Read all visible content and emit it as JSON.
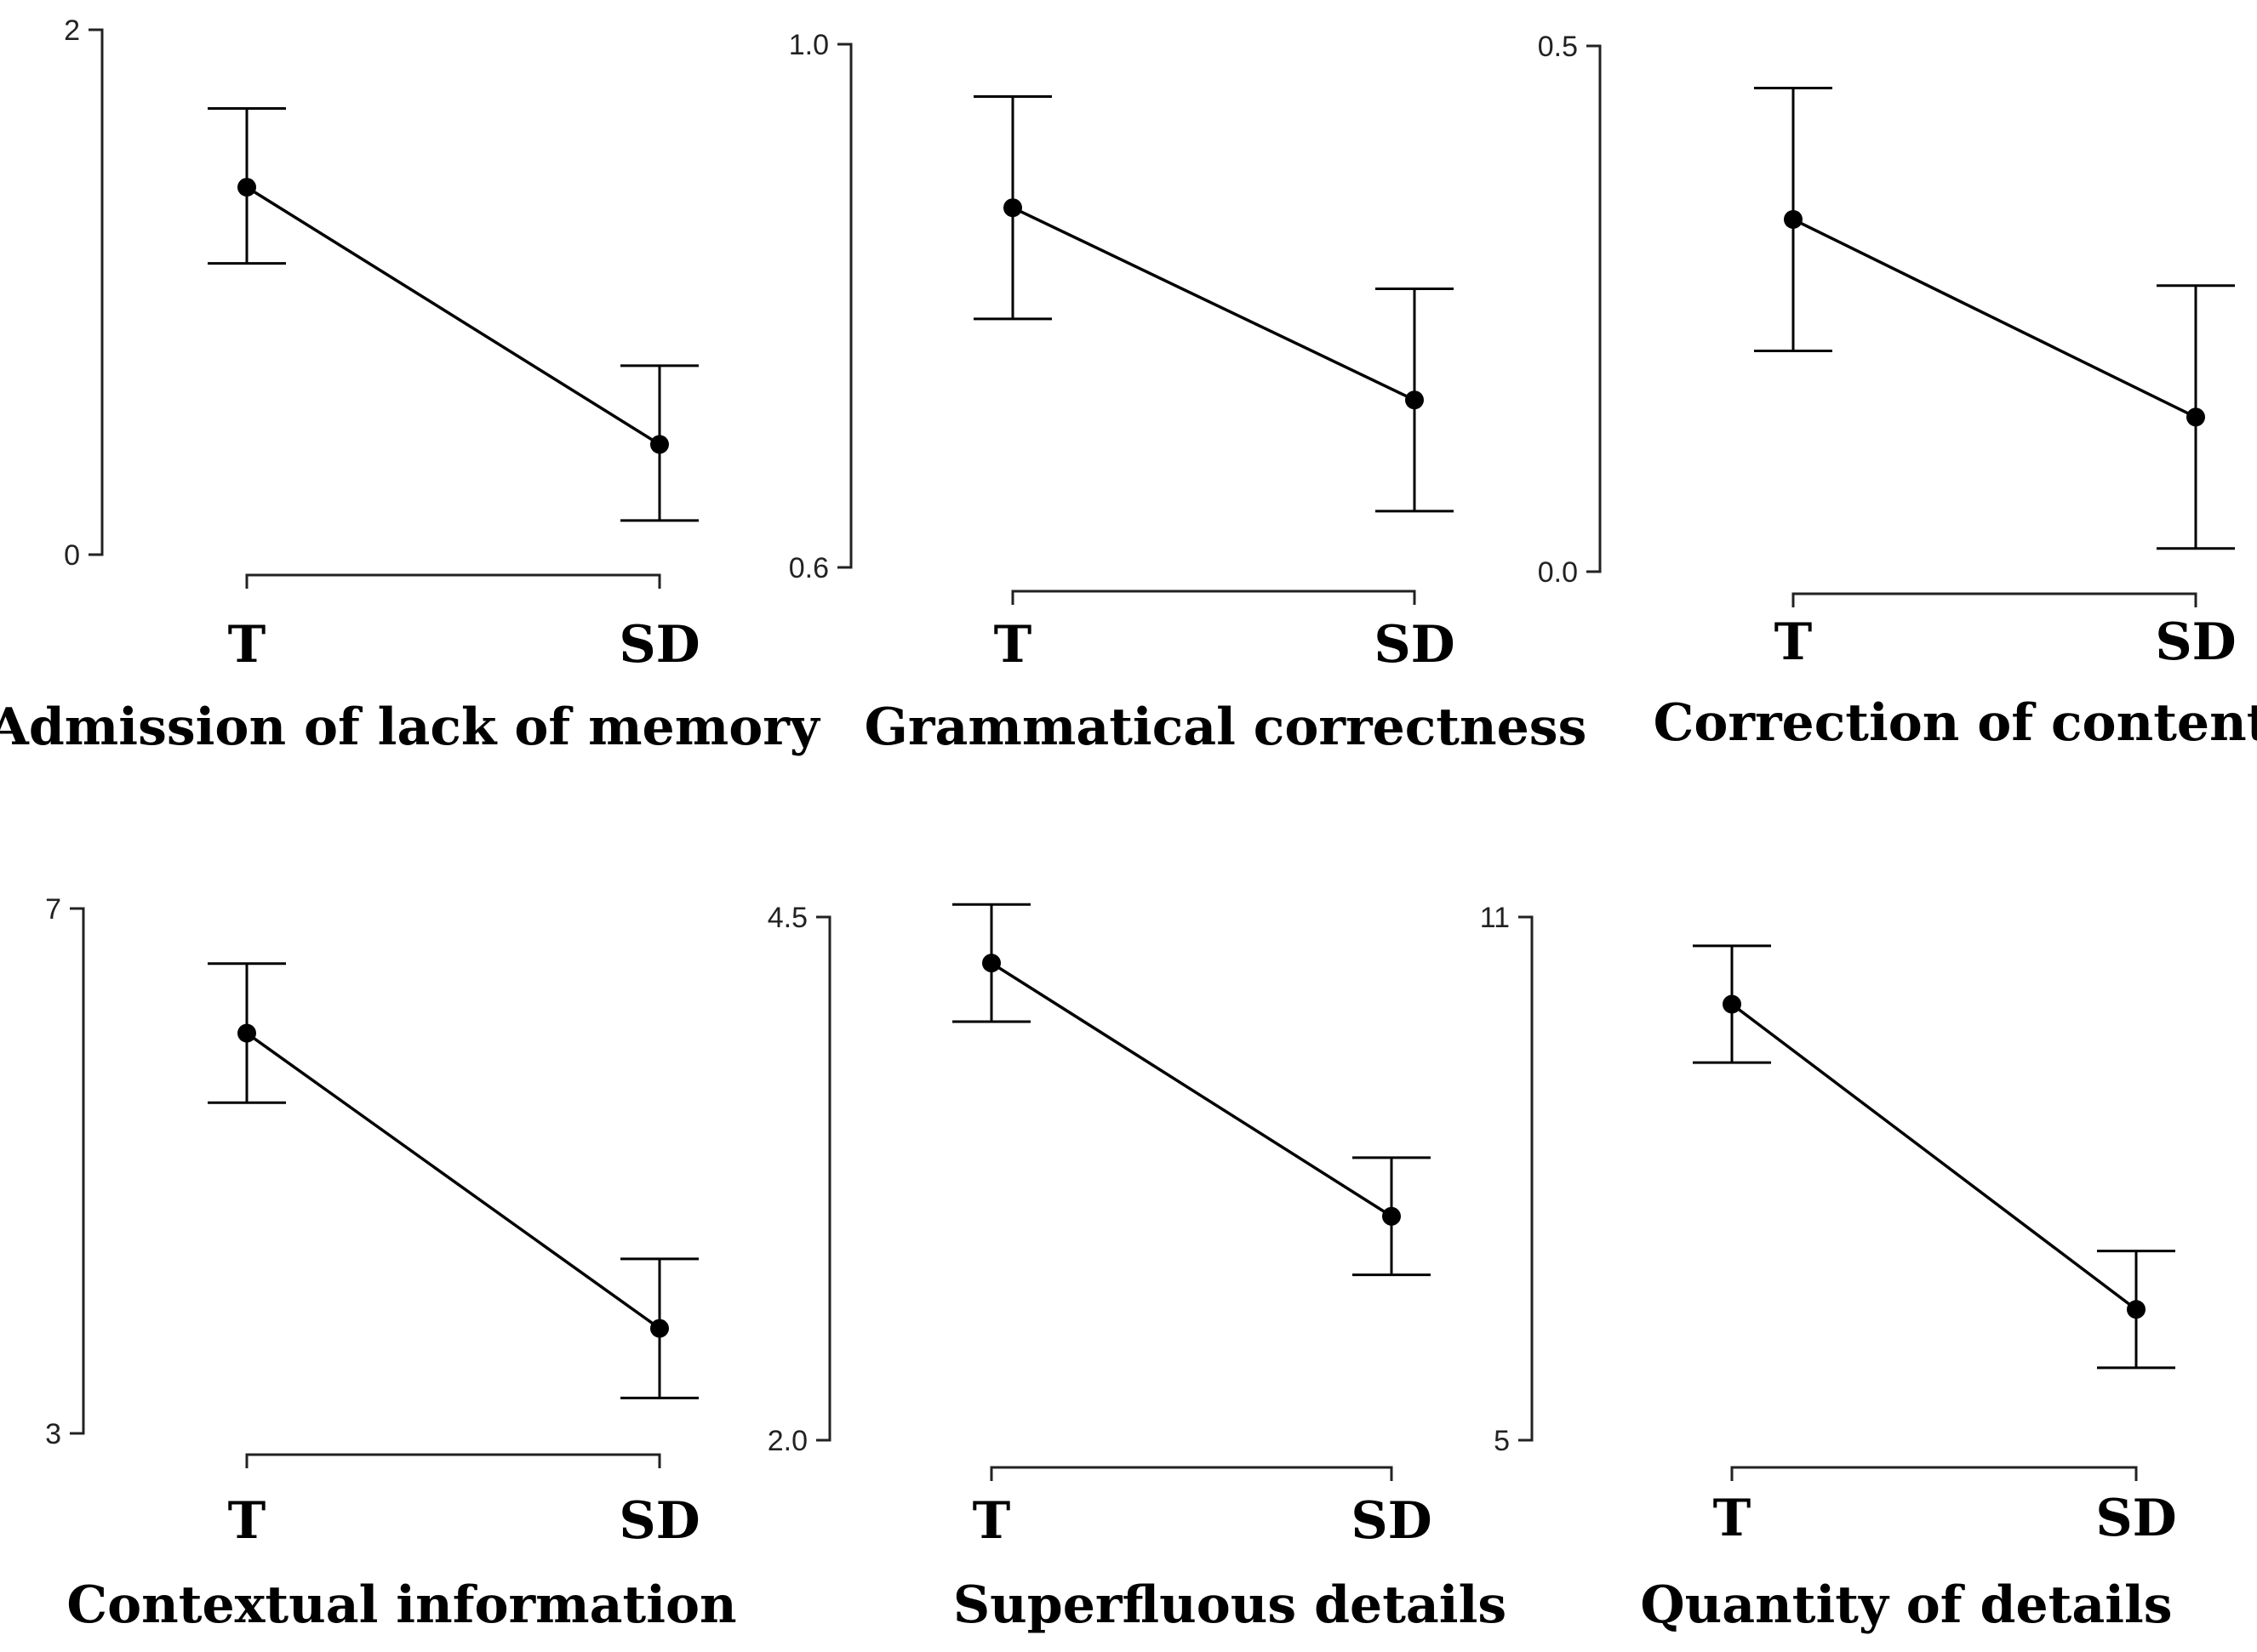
{
  "chart_data": [
    {
      "type": "line",
      "title": "Admission of lack of memory",
      "categories": [
        "T",
        "SD"
      ],
      "values": [
        1.4,
        0.42
      ],
      "error_low": [
        1.11,
        0.13
      ],
      "error_high": [
        1.7,
        0.72
      ],
      "ylim": [
        0,
        2
      ],
      "yticks": [
        "0",
        "2"
      ]
    },
    {
      "type": "line",
      "title": "Grammatical correctness",
      "categories": [
        "T",
        "SD"
      ],
      "values": [
        0.875,
        0.728
      ],
      "error_low": [
        0.79,
        0.643
      ],
      "error_high": [
        0.96,
        0.813
      ],
      "ylim": [
        0.6,
        1.0
      ],
      "yticks": [
        "0.6",
        "1.0"
      ]
    },
    {
      "type": "line",
      "title": "Correction of content",
      "categories": [
        "T",
        "SD"
      ],
      "values": [
        0.335,
        0.147
      ],
      "error_low": [
        0.21,
        0.022
      ],
      "error_high": [
        0.46,
        0.272
      ],
      "ylim": [
        0.0,
        0.5
      ],
      "yticks": [
        "0.0",
        "0.5"
      ]
    },
    {
      "type": "line",
      "title": "Contextual information",
      "categories": [
        "T",
        "SD"
      ],
      "values": [
        6.05,
        3.8
      ],
      "error_low": [
        5.52,
        3.27
      ],
      "error_high": [
        6.58,
        4.33
      ],
      "ylim": [
        3,
        7
      ],
      "yticks": [
        "3",
        "7"
      ]
    },
    {
      "type": "line",
      "title": "Superfluous details",
      "categories": [
        "T",
        "SD"
      ],
      "values": [
        4.28,
        3.07
      ],
      "error_low": [
        4.0,
        2.79
      ],
      "error_high": [
        4.56,
        3.35
      ],
      "ylim": [
        2.0,
        4.5
      ],
      "yticks": [
        "2.0",
        "4.5"
      ]
    },
    {
      "type": "line",
      "title": "Quantity of details",
      "categories": [
        "T",
        "SD"
      ],
      "values": [
        10.0,
        6.5
      ],
      "error_low": [
        9.33,
        5.83
      ],
      "error_high": [
        10.67,
        7.17
      ],
      "ylim": [
        5,
        11
      ],
      "yticks": [
        "5",
        "11"
      ]
    }
  ]
}
